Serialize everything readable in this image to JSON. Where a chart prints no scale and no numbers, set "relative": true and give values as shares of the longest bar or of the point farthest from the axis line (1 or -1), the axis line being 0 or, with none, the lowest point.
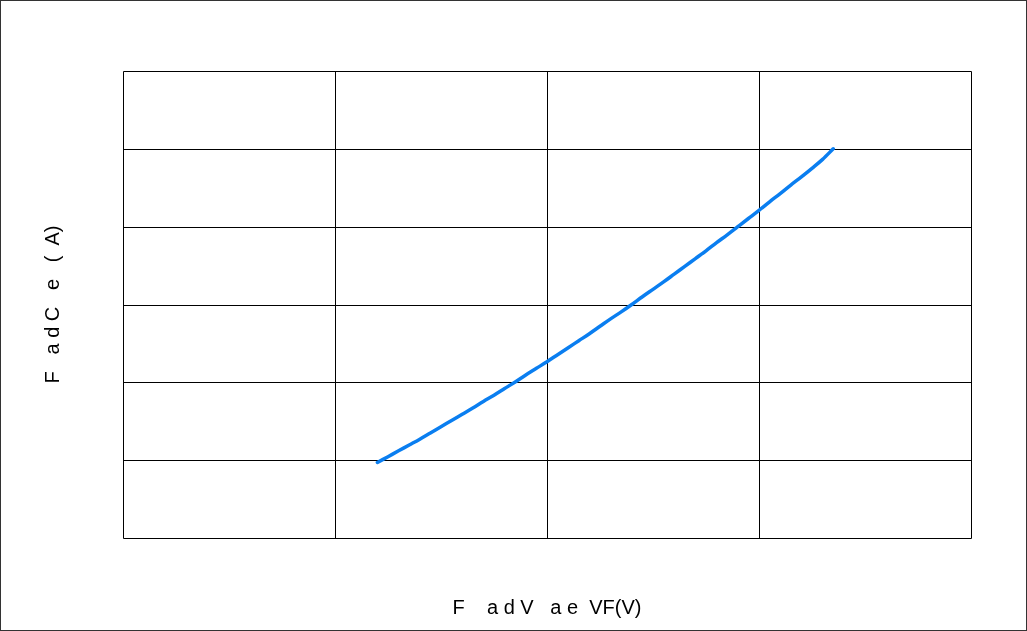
{
  "chart_data": {
    "type": "line",
    "relative": true,
    "xlabel": "F    a d V   a e  VF(V)",
    "ylabel": "F   a d C   e   (  A)",
    "grid": true,
    "marker": "none",
    "line_style": "solid",
    "categories": [
      null,
      null,
      null,
      null,
      null,
      null,
      null,
      null,
      null,
      null,
      null,
      null,
      null,
      null,
      null,
      null,
      null,
      null,
      null,
      null,
      null,
      null,
      null,
      null,
      null,
      null,
      null,
      null,
      null,
      null,
      null,
      null,
      null,
      null,
      null,
      null,
      null,
      null,
      null,
      null,
      null,
      null,
      null,
      null,
      null,
      null,
      null,
      null,
      null,
      null,
      null,
      null,
      null,
      null,
      null,
      null,
      null,
      null,
      null,
      null,
      null,
      null,
      null,
      null,
      null,
      null,
      null,
      null,
      null,
      null,
      null,
      null,
      null,
      null,
      null,
      null,
      null,
      null,
      null,
      null,
      null
    ],
    "series": [
      {
        "color": "#0a7ef0",
        "values": [
          null,
          null,
          null,
          null,
          null,
          null,
          null,
          null,
          null,
          null,
          null,
          null,
          null,
          null,
          null,
          null,
          null,
          null,
          null,
          null,
          null,
          null,
          null,
          null,
          0.194,
          0.209,
          0.224,
          0.239,
          0.254,
          0.27,
          0.286,
          0.302,
          0.318,
          0.334,
          0.351,
          0.367,
          0.384,
          0.401,
          0.419,
          0.436,
          0.453,
          0.471,
          0.489,
          0.507,
          0.525,
          0.544,
          0.563,
          0.581,
          0.6,
          0.62,
          0.639,
          0.658,
          0.678,
          0.698,
          0.718,
          0.738,
          0.759,
          0.779,
          0.8,
          0.821,
          0.842,
          0.864,
          0.885,
          0.907,
          0.928,
          0.95,
          0.973,
          1.0,
          null,
          null,
          null,
          null,
          null,
          null,
          null,
          null,
          null,
          null,
          null,
          null,
          null
        ]
      }
    ]
  }
}
